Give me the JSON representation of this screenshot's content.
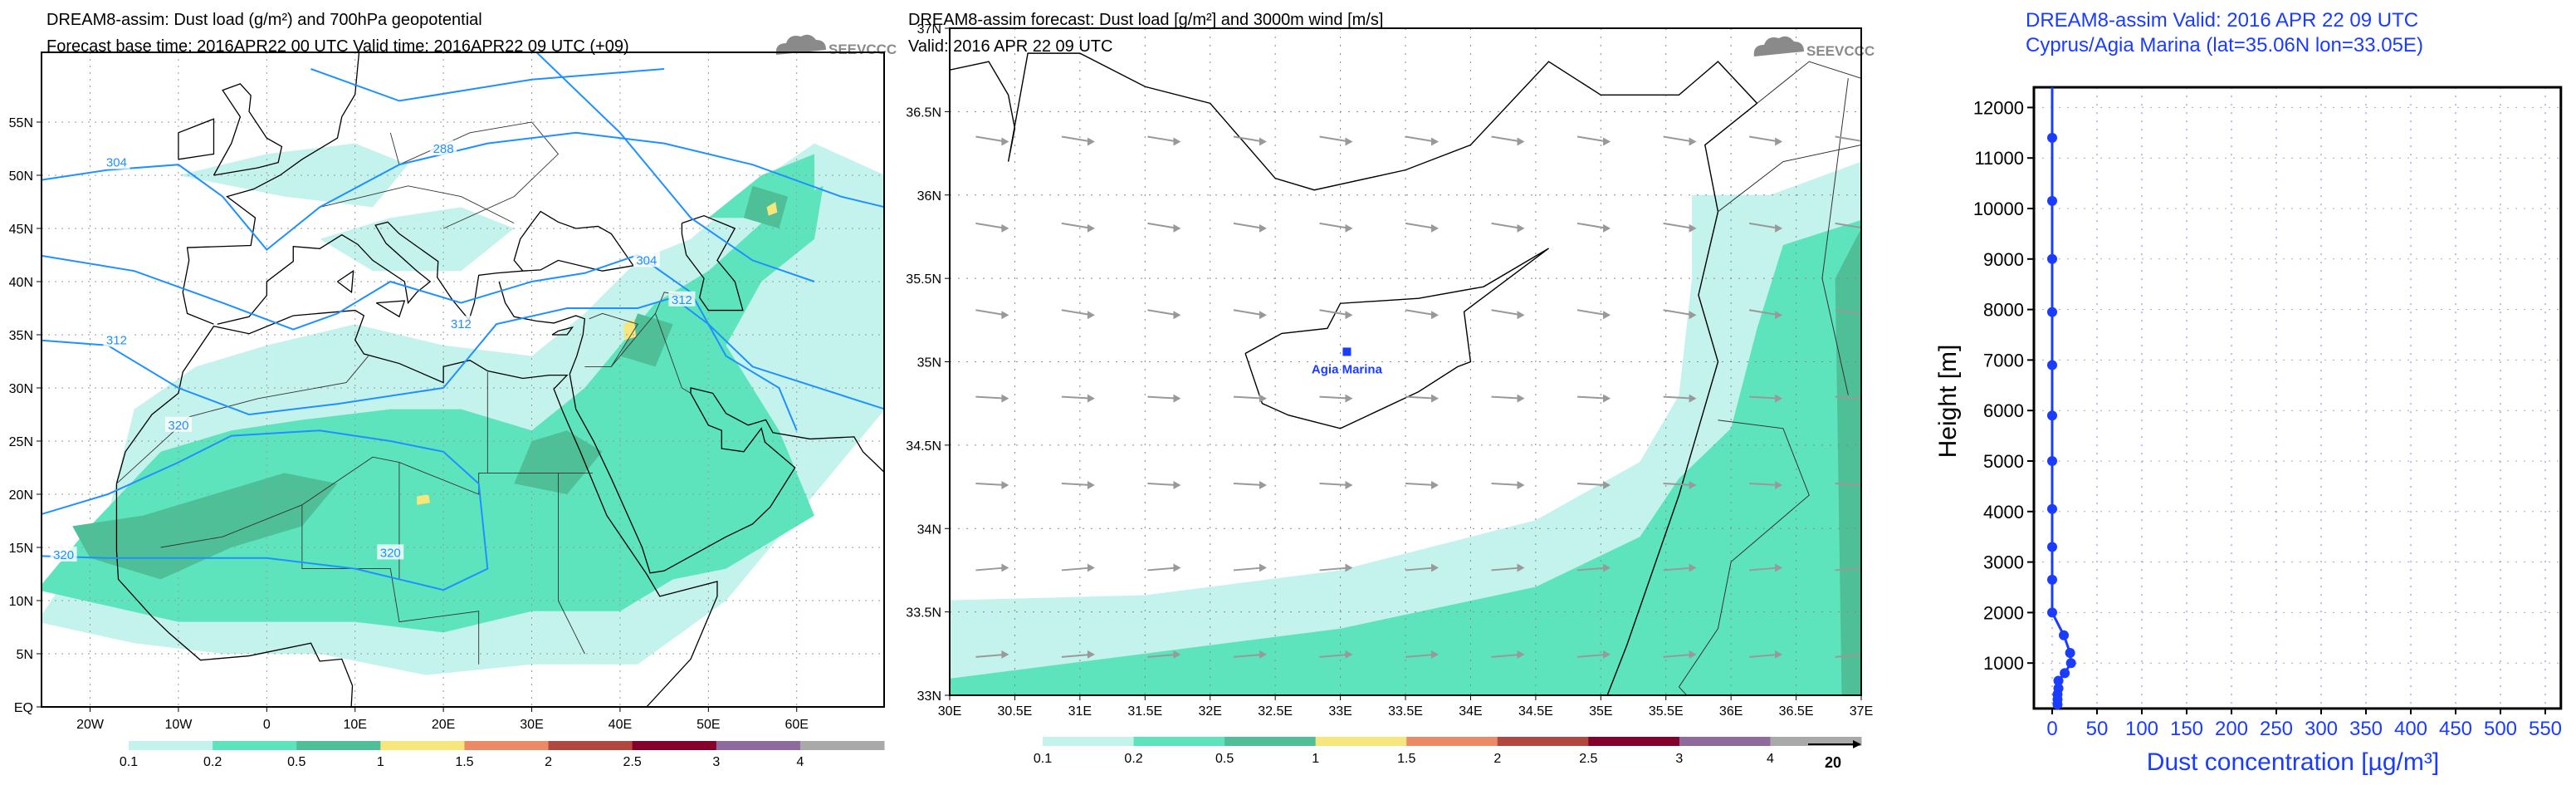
{
  "panel_left": {
    "title_line1": "DREAM8-assim: Dust load (g/m²) and 700hPa geopotential",
    "title_line2": "Forecast base time: 2016APR22 00 UTC  Valid time: 2016APR22 09 UTC  (+09)",
    "logo": "SEEVCCC",
    "lat_labels": [
      "EQ",
      "5N",
      "10N",
      "15N",
      "20N",
      "25N",
      "30N",
      "35N",
      "40N",
      "45N",
      "50N",
      "55N"
    ],
    "lon_labels": [
      "20W",
      "10W",
      "0",
      "10E",
      "20E",
      "30E",
      "40E",
      "50E",
      "60E"
    ],
    "contour_labels": [
      "304",
      "288",
      "304",
      "312",
      "312",
      "312",
      "320",
      "320",
      "320"
    ],
    "contour_color": "#1e90ff"
  },
  "panel_mid": {
    "title_line1": "DREAM8-assim forecast: Dust load [g/m²] and 3000m wind [m/s]",
    "title_line2": "Valid: 2016 APR 22   09 UTC",
    "logo": "SEEVCCC",
    "lat_labels": [
      "33N",
      "33.5N",
      "34N",
      "34.5N",
      "35N",
      "35.5N",
      "36N",
      "36.5N",
      "37N"
    ],
    "lon_labels": [
      "30E",
      "30.5E",
      "31E",
      "31.5E",
      "32E",
      "32.5E",
      "33E",
      "33.5E",
      "34E",
      "34.5E",
      "35E",
      "35.5E",
      "36E",
      "36.5E",
      "37E"
    ],
    "station_label": "Agia Marina",
    "station_color": "#1a3cff",
    "vector_reference": "20"
  },
  "colorbar": {
    "labels": [
      "0.1",
      "0.2",
      "0.5",
      "1",
      "1.5",
      "2",
      "2.5",
      "3",
      "4"
    ],
    "colors": [
      "#c4f2ec",
      "#5ee4bc",
      "#4fbf98",
      "#f6e67c",
      "#ec8a68",
      "#b2473f",
      "#85002a",
      "#8e6a9e",
      "#a9a9a9"
    ]
  },
  "chart_data": {
    "type": "line",
    "title_line1": "DREAM8-assim   Valid: 2016 APR 22   09 UTC",
    "title_line2": "Cyprus/Agia Marina (lat=35.06N lon=33.05E)",
    "xlabel": "Dust concentration [µg/m³]",
    "ylabel": "Height [m]",
    "xlim": [
      0,
      560
    ],
    "ylim": [
      100,
      12400
    ],
    "x_ticks": [
      "0",
      "50",
      "100",
      "150",
      "200",
      "250",
      "300",
      "350",
      "400",
      "450",
      "500",
      "550"
    ],
    "y_ticks": [
      "1000",
      "2000",
      "3000",
      "4000",
      "5000",
      "6000",
      "7000",
      "8000",
      "9000",
      "10000",
      "11000",
      "12000"
    ],
    "grid": true,
    "color": "#1a3cff",
    "series": [
      {
        "name": "Dust concentration",
        "height": [
          12400,
          11400,
          10150,
          9000,
          7950,
          6900,
          5900,
          5000,
          4050,
          3300,
          2650,
          2000,
          1550,
          1200,
          1000,
          800,
          650,
          500,
          380,
          280,
          180
        ],
        "value": [
          0,
          0,
          0,
          0,
          0,
          0,
          0,
          0,
          0,
          0,
          0,
          0,
          13,
          20,
          21,
          14,
          7,
          7,
          6,
          6,
          6
        ]
      }
    ]
  }
}
